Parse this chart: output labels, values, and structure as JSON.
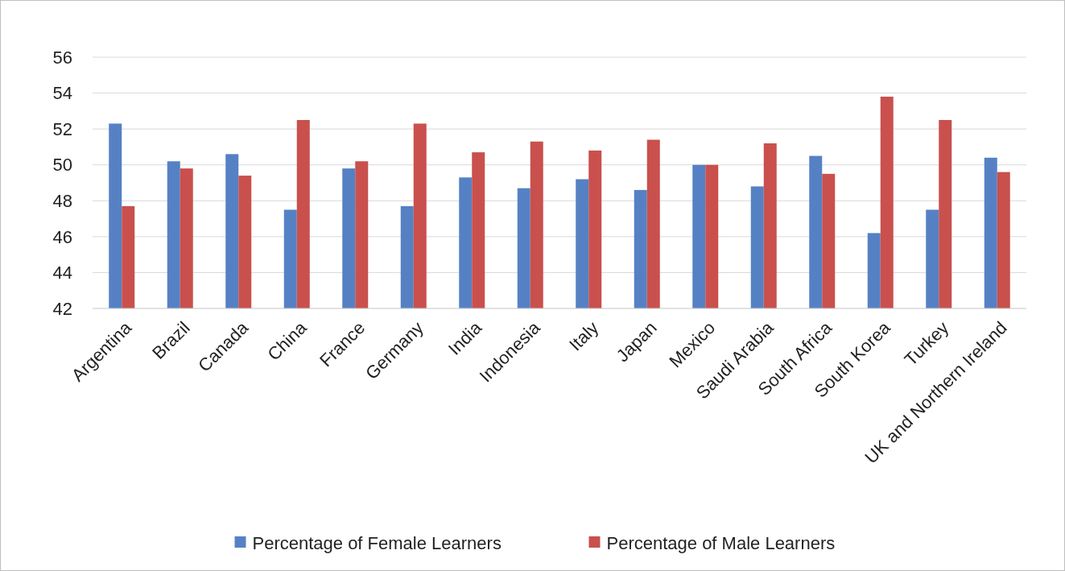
{
  "chart_data": {
    "type": "bar",
    "categories": [
      "Argentina",
      "Brazil",
      "Canada",
      "China",
      "France",
      "Germany",
      "India",
      "Indonesia",
      "Italy",
      "Japan",
      "Mexico",
      "Saudi Arabia",
      "South Africa",
      "South Korea",
      "Turkey",
      "UK and Northern Ireland"
    ],
    "series": [
      {
        "name": "Percentage of Female Learners",
        "color": "#5581c4",
        "values": [
          52.3,
          50.2,
          50.6,
          47.5,
          49.8,
          47.7,
          49.3,
          48.7,
          49.2,
          48.6,
          50,
          48.8,
          50.5,
          46.2,
          47.5,
          50.4
        ]
      },
      {
        "name": "Percentage of Male Learners",
        "color": "#c9504d",
        "values": [
          47.7,
          49.8,
          49.4,
          52.5,
          50.2,
          52.3,
          50.7,
          51.3,
          50.8,
          51.4,
          50,
          51.2,
          49.5,
          53.8,
          52.5,
          49.6
        ]
      }
    ],
    "ylim": [
      42,
      56
    ],
    "yticks": [
      42,
      44,
      46,
      48,
      50,
      52,
      54,
      56
    ],
    "grid": "y",
    "legend": "bottom"
  }
}
